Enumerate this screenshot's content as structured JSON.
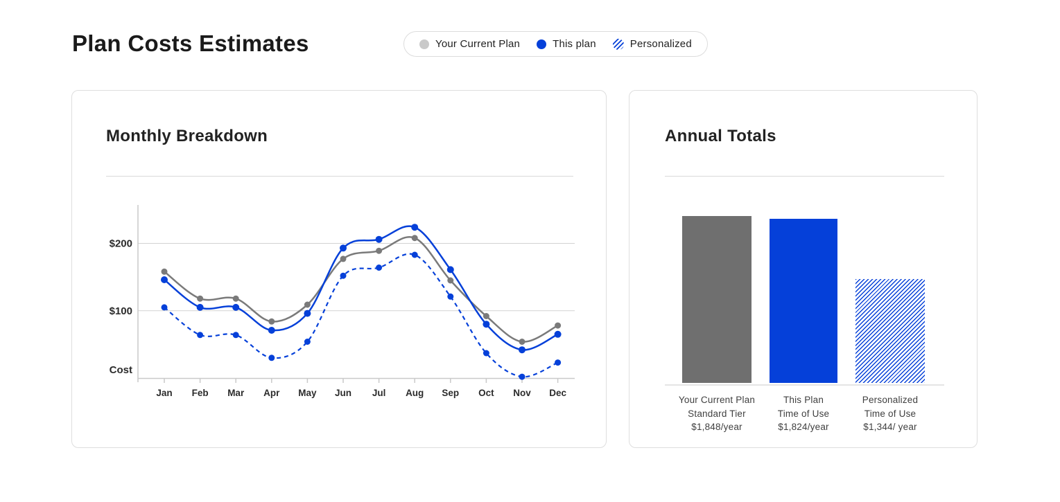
{
  "page": {
    "title": "Plan Costs Estimates"
  },
  "legend": {
    "items": [
      {
        "label": "Your Current Plan",
        "swatch": "dot",
        "color": "#c9c9c9"
      },
      {
        "label": "This plan",
        "swatch": "dot",
        "color": "#0540d9"
      },
      {
        "label": "Personalized",
        "swatch": "hatch",
        "color": "#0540d9"
      }
    ]
  },
  "colors": {
    "accent_blue": "#0540d9",
    "line_gray": "#7a7a7a",
    "bar_gray": "#6f6f6f",
    "grid_gray": "#d2d2d2",
    "axis_gray": "#c9c9c9"
  },
  "chart_data": [
    {
      "id": "monthly-breakdown",
      "type": "line",
      "title": "Monthly Breakdown",
      "categories": [
        "Jan",
        "Feb",
        "Mar",
        "Apr",
        "May",
        "Jun",
        "Jul",
        "Aug",
        "Sep",
        "Oct",
        "Nov",
        "Dec"
      ],
      "series": [
        {
          "name": "Your Current Plan",
          "style": "solid",
          "color": "#7a7a7a",
          "values": [
            158,
            118,
            118,
            84,
            109,
            177,
            189,
            208,
            145,
            92,
            54,
            78
          ]
        },
        {
          "name": "This plan",
          "style": "solid",
          "color": "#0540d9",
          "values": [
            146,
            105,
            105,
            71,
            96,
            193,
            206,
            224,
            161,
            80,
            42,
            65
          ]
        },
        {
          "name": "Personalized",
          "style": "dashed",
          "color": "#0540d9",
          "values": [
            105,
            64,
            64,
            30,
            54,
            152,
            164,
            183,
            121,
            37,
            2,
            23
          ]
        }
      ],
      "xlabel": "",
      "ylabel": "Cost",
      "y_tick_labels": [
        "$200",
        "$100"
      ],
      "y_tick_values": [
        200,
        100
      ],
      "ylim": [
        0,
        258
      ],
      "grid": "horizontal gridlines at $100 and $200",
      "legend_position": "top of page, shared pill"
    },
    {
      "id": "annual-totals",
      "type": "bar",
      "title": "Annual Totals",
      "bars": [
        {
          "plan": "Your Current Plan",
          "tier": "Standard Tier",
          "price": "$1,848/year",
          "value": 1848,
          "fill": "solid",
          "color": "#6f6f6f"
        },
        {
          "plan": "This Plan",
          "tier": "Time of Use",
          "price": "$1,824/year",
          "value": 1824,
          "fill": "solid",
          "color": "#0540d9"
        },
        {
          "plan": "Personalized",
          "tier": "Time of Use",
          "price": "$1,344/ year",
          "value": 1344,
          "fill": "hatch",
          "color": "#0540d9"
        }
      ],
      "ylim": [
        0,
        2000
      ],
      "grid": "off"
    }
  ]
}
